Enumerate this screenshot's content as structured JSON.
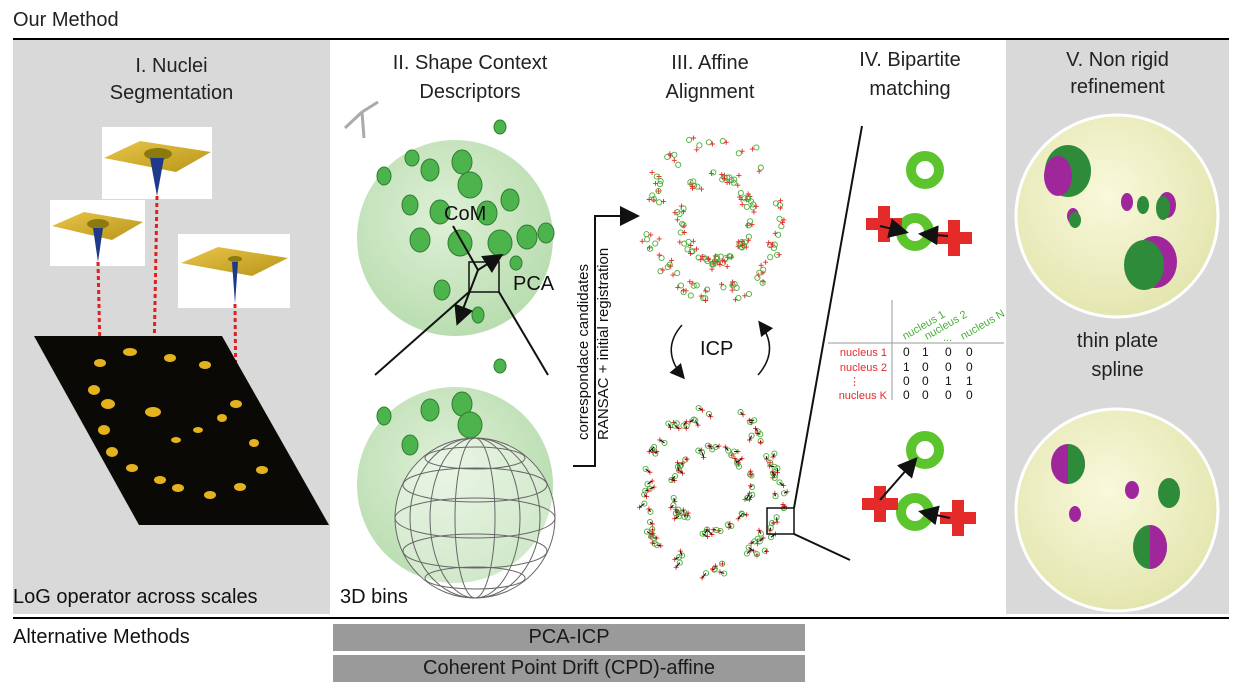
{
  "header": {
    "title": "Our Method"
  },
  "sections": {
    "s1": {
      "title_line1": "I. Nuclei",
      "title_line2": "Segmentation",
      "footer": "LoG operator across scales"
    },
    "s2": {
      "title_line1": "II. Shape Context",
      "title_line2": "Descriptors",
      "com_label": "CoM",
      "pca_label": "PCA",
      "footer": "3D bins"
    },
    "s3": {
      "title_line1": "III. Affine",
      "title_line2": "Alignment",
      "icp_label": "ICP",
      "arrow_label_line1": "correspondace candidates",
      "arrow_label_line2": "RANSAC + initial registration"
    },
    "s4": {
      "title_line1": "IV. Bipartite",
      "title_line2": "matching",
      "matrix": {
        "col_headers": [
          "nucleus 1",
          "nucleus 2",
          "...",
          "nucleus N"
        ],
        "row_headers": [
          "nucleus 1",
          "nucleus 2",
          "⋮",
          "nucleus K"
        ],
        "rows": [
          [
            "0",
            "1",
            "0",
            "0"
          ],
          [
            "1",
            "0",
            "0",
            "0"
          ],
          [
            "0",
            "0",
            "1",
            "1"
          ],
          [
            "0",
            "0",
            "0",
            "0"
          ]
        ]
      }
    },
    "s5": {
      "title_line1": "V. Non rigid",
      "title_line2": "refinement",
      "mid_line1": "thin plate",
      "mid_line2": "spline"
    }
  },
  "alternatives": {
    "label": "Alternative Methods",
    "methods": [
      "PCA-ICP",
      "Coherent Point Drift (CPD)-affine"
    ]
  },
  "colors": {
    "green": "#3aa63a",
    "red": "#e52a2a",
    "magenta": "#a0269c",
    "gray_panel": "#d9d9d9",
    "bar": "#9a9a9a",
    "sphere": "#c9e7c0"
  }
}
